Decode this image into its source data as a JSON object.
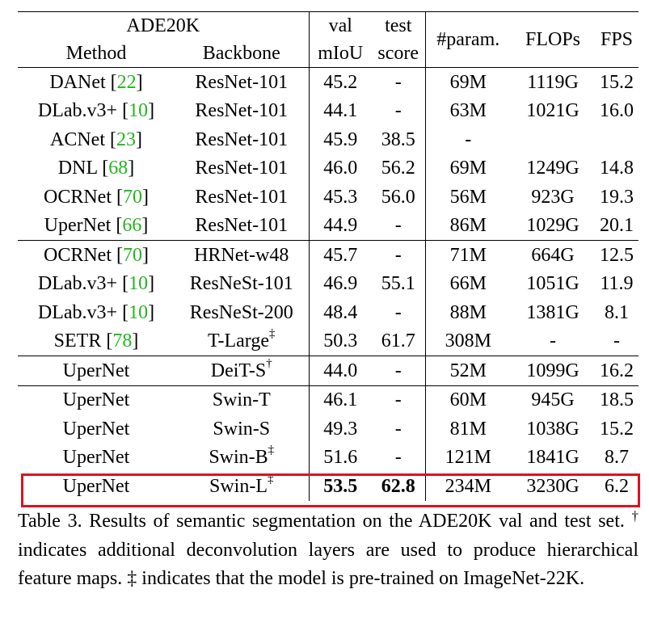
{
  "table": {
    "dataset": "ADE20K",
    "headers": {
      "method": "Method",
      "backbone": "Backbone",
      "val_top": "val",
      "val_bottom": "mIoU",
      "test_top": "test",
      "test_bottom": "score",
      "params": "#param.",
      "flops": "FLOPs",
      "fps": "FPS"
    },
    "rows": [
      {
        "method": "DANet",
        "ref": "22",
        "backbone": "ResNet-101",
        "mark": "",
        "val": "45.2",
        "test": "-",
        "params": "69M",
        "flops": "1119G",
        "fps": "15.2"
      },
      {
        "method": "DLab.v3+",
        "ref": "10",
        "backbone": "ResNet-101",
        "mark": "",
        "val": "44.1",
        "test": "-",
        "params": "63M",
        "flops": "1021G",
        "fps": "16.0"
      },
      {
        "method": "ACNet",
        "ref": "23",
        "backbone": "ResNet-101",
        "mark": "",
        "val": "45.9",
        "test": "38.5",
        "params": "-",
        "flops": "",
        "fps": ""
      },
      {
        "method": "DNL",
        "ref": "68",
        "backbone": "ResNet-101",
        "mark": "",
        "val": "46.0",
        "test": "56.2",
        "params": "69M",
        "flops": "1249G",
        "fps": "14.8"
      },
      {
        "method": "OCRNet",
        "ref": "70",
        "backbone": "ResNet-101",
        "mark": "",
        "val": "45.3",
        "test": "56.0",
        "params": "56M",
        "flops": "923G",
        "fps": "19.3"
      },
      {
        "method": "UperNet",
        "ref": "66",
        "backbone": "ResNet-101",
        "mark": "",
        "val": "44.9",
        "test": "-",
        "params": "86M",
        "flops": "1029G",
        "fps": "20.1"
      },
      {
        "method": "OCRNet",
        "ref": "70",
        "backbone": "HRNet-w48",
        "mark": "",
        "val": "45.7",
        "test": "-",
        "params": "71M",
        "flops": "664G",
        "fps": "12.5"
      },
      {
        "method": "DLab.v3+",
        "ref": "10",
        "backbone": "ResNeSt-101",
        "mark": "",
        "val": "46.9",
        "test": "55.1",
        "params": "66M",
        "flops": "1051G",
        "fps": "11.9"
      },
      {
        "method": "DLab.v3+",
        "ref": "10",
        "backbone": "ResNeSt-200",
        "mark": "",
        "val": "48.4",
        "test": "-",
        "params": "88M",
        "flops": "1381G",
        "fps": "8.1"
      },
      {
        "method": "SETR",
        "ref": "78",
        "backbone": "T-Large",
        "mark": "‡",
        "val": "50.3",
        "test": "61.7",
        "params": "308M",
        "flops": "-",
        "fps": "-"
      },
      {
        "method": "UperNet",
        "ref": "",
        "backbone": "DeiT-S",
        "mark": "†",
        "val": "44.0",
        "test": "-",
        "params": "52M",
        "flops": "1099G",
        "fps": "16.2"
      },
      {
        "method": "UperNet",
        "ref": "",
        "backbone": "Swin-T",
        "mark": "",
        "val": "46.1",
        "test": "-",
        "params": "60M",
        "flops": "945G",
        "fps": "18.5"
      },
      {
        "method": "UperNet",
        "ref": "",
        "backbone": "Swin-S",
        "mark": "",
        "val": "49.3",
        "test": "-",
        "params": "81M",
        "flops": "1038G",
        "fps": "15.2"
      },
      {
        "method": "UperNet",
        "ref": "",
        "backbone": "Swin-B",
        "mark": "‡",
        "val": "51.6",
        "test": "-",
        "params": "121M",
        "flops": "1841G",
        "fps": "8.7"
      },
      {
        "method": "UperNet",
        "ref": "",
        "backbone": "Swin-L",
        "mark": "‡",
        "val": "53.5",
        "test": "62.8",
        "params": "234M",
        "flops": "3230G",
        "fps": "6.2",
        "bold_scores": true
      }
    ],
    "group_starts": [
      6,
      10,
      11
    ]
  },
  "caption": {
    "part1": "Table 3. Results of semantic segmentation on the ADE20K val and test set.",
    "dagger": "†",
    "part2": "indicates additional deconvolution layers are used to produce hierarchical feature maps.",
    "ddagger": "‡",
    "part3": "indicates that the model is pre-trained on ImageNet-22K."
  },
  "colors": {
    "reference_link": "#22b51c",
    "highlight_box": "#e0101f"
  }
}
